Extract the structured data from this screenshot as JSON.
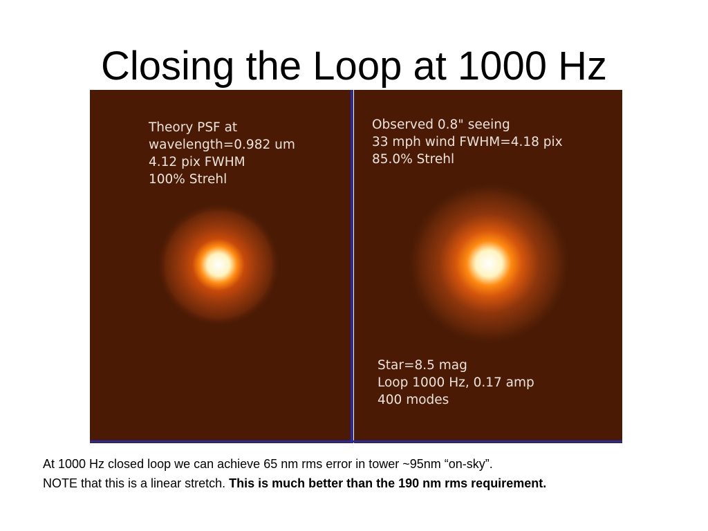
{
  "title": "Closing the Loop at 1000 Hz",
  "panels": [
    {
      "lines": [
        "Theory PSF at",
        "wavelength=0.982 um",
        "4.12 pix FWHM",
        "100% Strehl"
      ]
    },
    {
      "lines": [
        "Observed 0.8\" seeing",
        "33 mph wind FWHM=4.18 pix",
        "85.0% Strehl"
      ],
      "footer_lines": [
        "Star=8.5 mag",
        "Loop 1000 Hz, 0.17 amp",
        "400 modes"
      ]
    }
  ],
  "notes": [
    {
      "text": "At 1000 Hz closed loop we can achieve 65 nm rms error in tower ~95nm “on-sky”."
    },
    {
      "text": "NOTE that this is a linear stretch.",
      "bold": "This is much better than the 190 nm rms requirement."
    }
  ]
}
